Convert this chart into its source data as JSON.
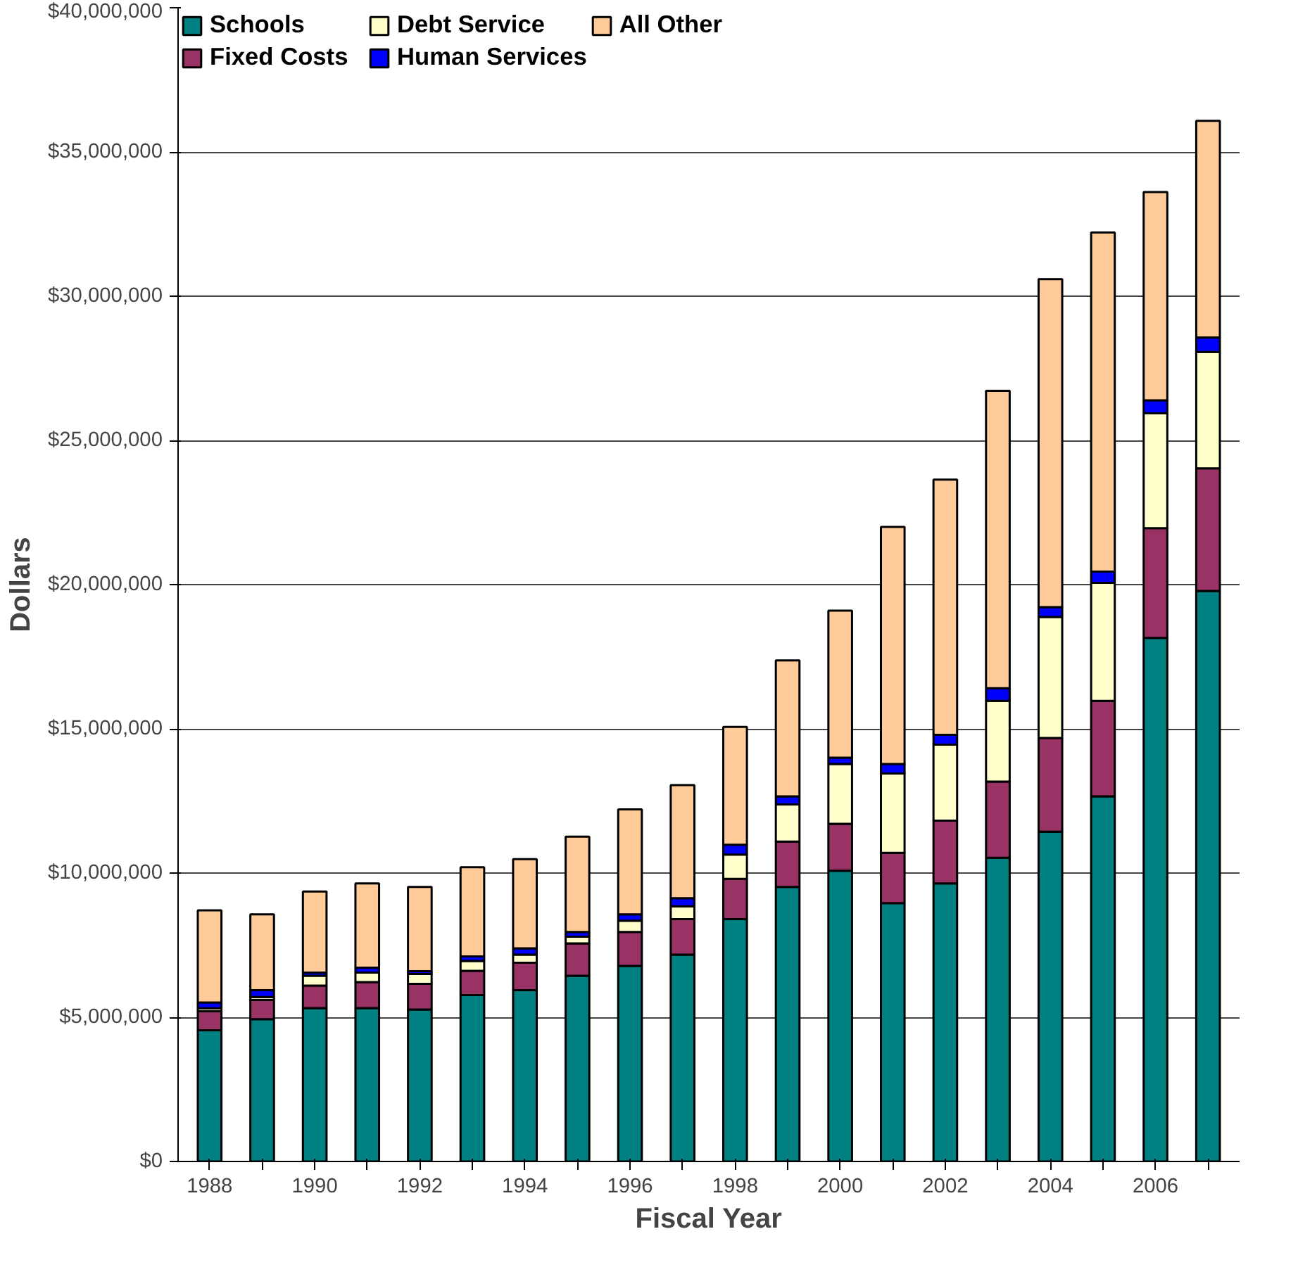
{
  "chart_data": {
    "type": "bar",
    "stacked": true,
    "xlabel": "Fiscal Year",
    "ylabel": "Dollars",
    "categories": [
      "1988",
      null,
      "1990",
      null,
      "1992",
      null,
      "1994",
      null,
      "1996",
      null,
      "1998",
      null,
      "2000",
      null,
      "2002",
      null,
      "2004",
      null,
      "2006",
      null
    ],
    "series": [
      {
        "name": "Schools",
        "color": "#008080",
        "values": [
          4550000,
          4930000,
          5320000,
          5320000,
          5270000,
          5770000,
          5940000,
          6440000,
          6780000,
          7170000,
          8400000,
          9520000,
          10080000,
          8960000,
          9640000,
          10530000,
          11430000,
          12660000,
          18150000,
          19780000
        ]
      },
      {
        "name": "Fixed Costs",
        "color": "#993366",
        "values": [
          660000,
          670000,
          780000,
          900000,
          890000,
          840000,
          950000,
          1120000,
          1180000,
          1230000,
          1400000,
          1570000,
          1630000,
          1740000,
          2180000,
          2640000,
          3250000,
          3310000,
          3810000,
          4250000
        ]
      },
      {
        "name": "Debt Service",
        "color": "#ffffcc",
        "values": [
          100000,
          100000,
          340000,
          330000,
          340000,
          340000,
          280000,
          230000,
          390000,
          450000,
          840000,
          1290000,
          2070000,
          2750000,
          2630000,
          2800000,
          4200000,
          4090000,
          3980000,
          4040000
        ]
      },
      {
        "name": "Human Services",
        "color": "#0000ff",
        "values": [
          200000,
          240000,
          110000,
          170000,
          100000,
          160000,
          220000,
          170000,
          220000,
          280000,
          340000,
          280000,
          220000,
          330000,
          340000,
          440000,
          340000,
          390000,
          450000,
          500000
        ]
      },
      {
        "name": "All Other",
        "color": "#ffcc99",
        "values": [
          3200000,
          2630000,
          2810000,
          2920000,
          2920000,
          3090000,
          3090000,
          3300000,
          3640000,
          3920000,
          4090000,
          4710000,
          5100000,
          8220000,
          8850000,
          10310000,
          11370000,
          11760000,
          7220000,
          7510000
        ]
      }
    ],
    "ylim": [
      0,
      40000000
    ],
    "yticks": [
      {
        "value": 0,
        "label": "$0"
      },
      {
        "value": 5000000,
        "label": "$5,000,000"
      },
      {
        "value": 10000000,
        "label": "$10,000,000"
      },
      {
        "value": 15000000,
        "label": "$15,000,000"
      },
      {
        "value": 20000000,
        "label": "$20,000,000"
      },
      {
        "value": 25000000,
        "label": "$25,000,000"
      },
      {
        "value": 30000000,
        "label": "$30,000,000"
      },
      {
        "value": 35000000,
        "label": "$35,000,000"
      },
      {
        "value": 40000000,
        "label": "$40,000,000"
      }
    ],
    "grid": "y",
    "legend": "top left"
  }
}
